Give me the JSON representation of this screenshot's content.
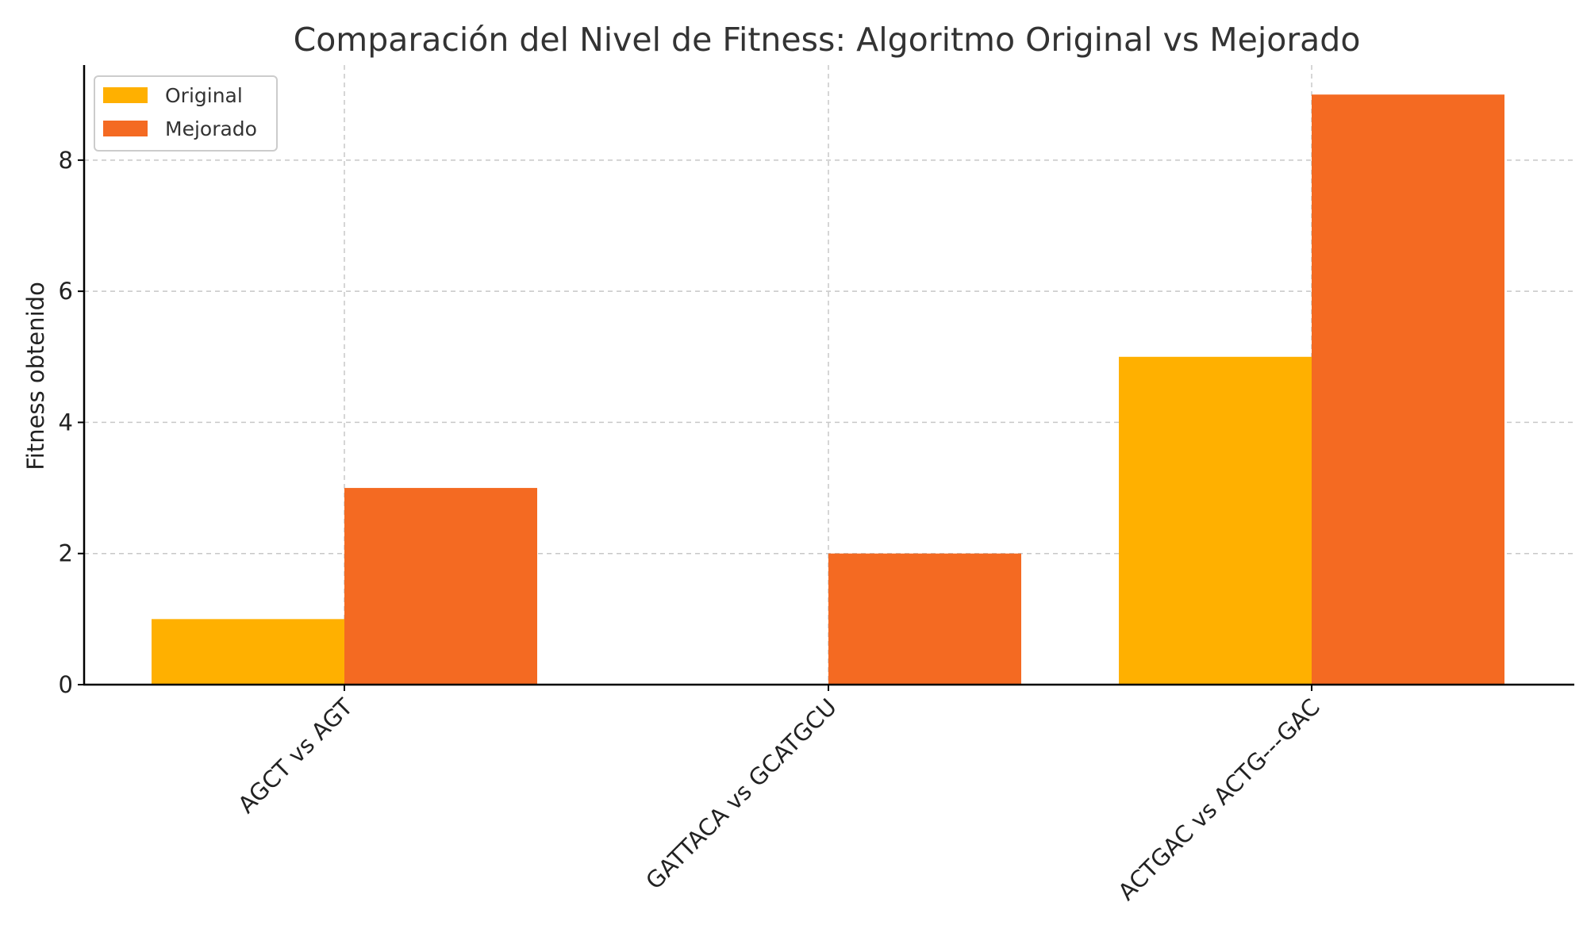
{
  "chart_data": {
    "type": "bar",
    "title": "Comparación del Nivel de Fitness: Algoritmo Original vs Mejorado",
    "xlabel": "",
    "ylabel": "Fitness obtenido",
    "categories": [
      "AGCT vs AGT",
      "GATTACA vs GCATGCU",
      "ACTGAC vs ACTG---GAC"
    ],
    "series": [
      {
        "name": "Original",
        "values": [
          1,
          0,
          5
        ],
        "color": "#FFB000"
      },
      {
        "name": "Mejorado",
        "values": [
          3,
          2,
          9
        ],
        "color": "#F46A22"
      }
    ],
    "ylim": [
      0,
      9.45
    ],
    "yticks": [
      0,
      2,
      4,
      6,
      8
    ],
    "ytick_labels": [
      "0",
      "2",
      "4",
      "6",
      "8"
    ],
    "grid": true,
    "legend_position": "top-left"
  }
}
